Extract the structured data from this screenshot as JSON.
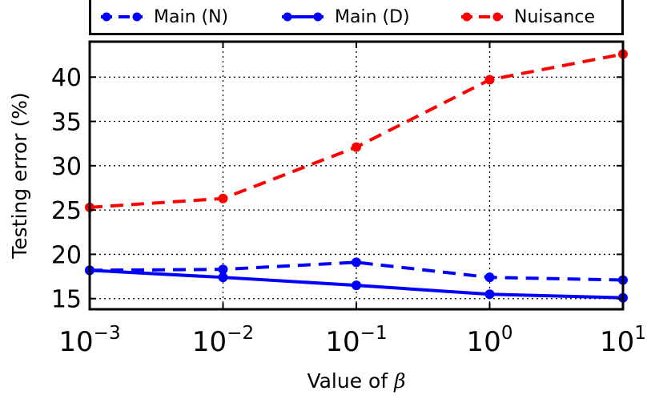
{
  "chart_data": {
    "type": "line",
    "xlabel_prefix": "Value of ",
    "xlabel_symbol": "β",
    "ylabel": "Testing error (%)",
    "xscale": "log",
    "x": [
      0.001,
      0.01,
      0.1,
      1,
      10
    ],
    "x_tick_labels": [
      {
        "base": "10",
        "exp": "-3"
      },
      {
        "base": "10",
        "exp": "-2"
      },
      {
        "base": "10",
        "exp": "-1"
      },
      {
        "base": "10",
        "exp": "0"
      },
      {
        "base": "10",
        "exp": "1"
      }
    ],
    "xlim_log10": [
      -3,
      1
    ],
    "ylim": [
      13.8,
      44
    ],
    "y_ticks": [
      15,
      20,
      25,
      30,
      35,
      40
    ],
    "grid": true,
    "legend_position": "top",
    "series": [
      {
        "name": "Main (N)",
        "color": "#0000ff",
        "dash": "dashed",
        "values": [
          18.2,
          18.3,
          19.1,
          17.4,
          17.1
        ]
      },
      {
        "name": "Main (D)",
        "color": "#0000ff",
        "dash": "solid",
        "values": [
          18.2,
          17.4,
          16.5,
          15.5,
          15.1
        ]
      },
      {
        "name": "Nuisance",
        "color": "#ff0000",
        "dash": "dashed",
        "values": [
          25.3,
          26.3,
          32.1,
          39.7,
          42.6
        ]
      }
    ]
  }
}
